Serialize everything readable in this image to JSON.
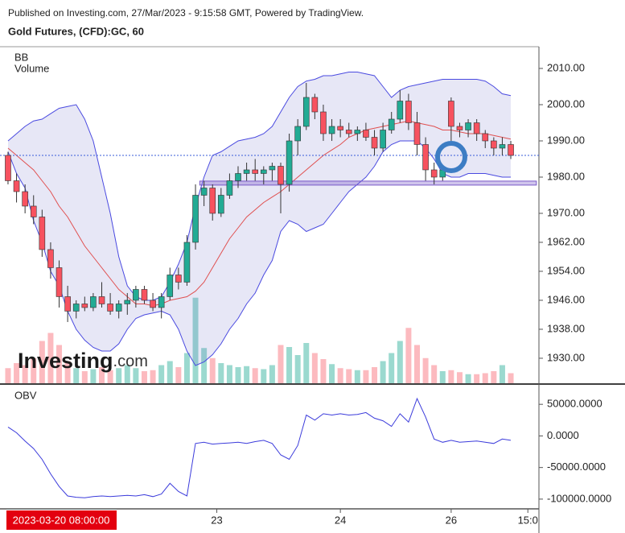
{
  "header": {
    "published": "Published on Investing.com, 27/Mar/2023 - 9:15:58 GMT, Powered by TradingView.",
    "symbol": "Gold Futures, (CFD):GC, 60"
  },
  "crosshair_label": "2023-03-20 08:00:00",
  "chart_data": [
    {
      "type": "candlestick",
      "indicators": [
        "BB",
        "Volume"
      ],
      "watermark": {
        "brand": "Investing",
        "suffix": ".com"
      },
      "x": [
        0,
        1,
        2,
        3,
        4,
        5,
        6,
        7,
        8,
        9,
        10,
        11,
        12,
        13,
        14,
        15,
        16,
        17,
        18,
        19,
        20,
        21,
        22,
        23,
        24,
        25,
        26,
        27,
        28,
        29,
        30,
        31,
        32,
        33,
        34,
        35,
        36,
        37,
        38,
        39,
        40,
        41,
        42,
        43,
        44,
        45,
        46,
        47,
        48,
        49,
        50,
        51,
        52,
        53,
        54,
        55,
        56,
        57,
        58,
        59
      ],
      "candles": [
        [
          1986,
          1987,
          1978,
          1979
        ],
        [
          1979,
          1981,
          1973,
          1976
        ],
        [
          1976,
          1978,
          1970,
          1972
        ],
        [
          1972,
          1975,
          1967,
          1969
        ],
        [
          1969,
          1971,
          1958,
          1960
        ],
        [
          1960,
          1962,
          1952,
          1955
        ],
        [
          1955,
          1957,
          1944,
          1947
        ],
        [
          1947,
          1950,
          1940,
          1943
        ],
        [
          1943,
          1946,
          1941,
          1945
        ],
        [
          1945,
          1947,
          1943,
          1944
        ],
        [
          1944,
          1948,
          1943,
          1947
        ],
        [
          1947,
          1951,
          1944,
          1945
        ],
        [
          1945,
          1948,
          1942,
          1943
        ],
        [
          1943,
          1946,
          1941,
          1945
        ],
        [
          1945,
          1948,
          1942,
          1946
        ],
        [
          1946,
          1950,
          1944,
          1949
        ],
        [
          1949,
          1950,
          1945,
          1946
        ],
        [
          1946,
          1948,
          1943,
          1944
        ],
        [
          1944,
          1948,
          1941,
          1947
        ],
        [
          1947,
          1955,
          1946,
          1953
        ],
        [
          1953,
          1955,
          1949,
          1951
        ],
        [
          1951,
          1964,
          1950,
          1962
        ],
        [
          1962,
          1978,
          1960,
          1975
        ],
        [
          1975,
          1979,
          1972,
          1977
        ],
        [
          1977,
          1978,
          1968,
          1970
        ],
        [
          1970,
          1977,
          1969,
          1975
        ],
        [
          1975,
          1981,
          1974,
          1979
        ],
        [
          1979,
          1983,
          1977,
          1981
        ],
        [
          1981,
          1984,
          1979,
          1982
        ],
        [
          1982,
          1985,
          1979,
          1981
        ],
        [
          1981,
          1983,
          1978,
          1982
        ],
        [
          1982,
          1984,
          1979,
          1983
        ],
        [
          1983,
          1984,
          1970,
          1978
        ],
        [
          1978,
          1992,
          1976,
          1990
        ],
        [
          1990,
          1996,
          1986,
          1994
        ],
        [
          1994,
          2006,
          1993,
          2002
        ],
        [
          2002,
          2003,
          1996,
          1998
        ],
        [
          1998,
          2000,
          1990,
          1992
        ],
        [
          1992,
          1996,
          1990,
          1994
        ],
        [
          1994,
          1996,
          1991,
          1993
        ],
        [
          1993,
          1995,
          1991,
          1992
        ],
        [
          1992,
          1994,
          1990,
          1993
        ],
        [
          1993,
          1995,
          1990,
          1991
        ],
        [
          1991,
          1993,
          1986,
          1988
        ],
        [
          1988,
          1995,
          1987,
          1993
        ],
        [
          1993,
          1998,
          1992,
          1996
        ],
        [
          1996,
          2004,
          1995,
          2001
        ],
        [
          2001,
          2003,
          1993,
          1995
        ],
        [
          1995,
          1998,
          1986,
          1989
        ],
        [
          1989,
          1991,
          1979,
          1982
        ],
        [
          1982,
          1984,
          1978,
          1980
        ],
        [
          1980,
          1983,
          1979,
          1982
        ],
        [
          2001,
          2002,
          1990,
          1994
        ],
        [
          1994,
          1995,
          1991,
          1993
        ],
        [
          1993,
          1996,
          1991,
          1995
        ],
        [
          1995,
          1996,
          1990,
          1992
        ],
        [
          1992,
          1993,
          1988,
          1990
        ],
        [
          1990,
          1991,
          1986,
          1988
        ],
        [
          1988,
          1991,
          1986,
          1989
        ],
        [
          1989,
          1990,
          1985,
          1986
        ]
      ],
      "up_color": "#22ab94",
      "down_color": "#f7525f",
      "bb": {
        "color": "#4a4ae0",
        "mid_color": "#e05050",
        "fill": "rgba(110,110,200,0.17)",
        "upper": [
          1990,
          1992,
          1994,
          1995.5,
          1996,
          1997.5,
          1999,
          1999.5,
          2000,
          1996,
          1990,
          1980,
          1970,
          1958,
          1950,
          1947,
          1946,
          1946,
          1947,
          1951,
          1956,
          1962,
          1972,
          1980,
          1986,
          1987,
          1988.5,
          1990,
          1990.5,
          1991,
          1992,
          1994,
          1998,
          2002,
          2005,
          2006.5,
          2007,
          2008,
          2008,
          2008.5,
          2009,
          2009,
          2008.5,
          2008,
          2005,
          2002,
          2004,
          2005,
          2005.5,
          2006,
          2006.5,
          2007,
          2007,
          2007,
          2007,
          2007,
          2006.5,
          2005,
          2003,
          2002.5
        ],
        "middle": [
          1988,
          1986,
          1984,
          1982,
          1979,
          1976,
          1972,
          1969,
          1965,
          1961,
          1958,
          1955,
          1952,
          1949,
          1947,
          1945,
          1945,
          1944.5,
          1945,
          1946,
          1946.5,
          1947,
          1948.5,
          1951,
          1955,
          1959,
          1963,
          1966,
          1969,
          1971,
          1973,
          1974.5,
          1976,
          1978,
          1980,
          1982,
          1984,
          1986,
          1987.5,
          1989,
          1991,
          1992,
          1993,
          1993.5,
          1994,
          1994.5,
          1995,
          1995.5,
          1995,
          1994.5,
          1994,
          1993,
          1993,
          1992.5,
          1992,
          1992,
          1992,
          1991.5,
          1991,
          1990.5
        ],
        "lower": [
          1987,
          1981,
          1977,
          1968,
          1962,
          1954,
          1950,
          1943,
          1938,
          1935,
          1933,
          1932,
          1932,
          1934,
          1938,
          1941,
          1942,
          1942.5,
          1943,
          1942,
          1938,
          1932,
          1928,
          1929,
          1931,
          1934,
          1938,
          1941,
          1945,
          1948,
          1953,
          1957,
          1965,
          1968,
          1967,
          1965,
          1966,
          1967,
          1970,
          1973,
          1976,
          1978,
          1980,
          1983,
          1987,
          1989,
          1990,
          1990,
          1990,
          1988,
          1985,
          1981,
          1980,
          1980,
          1981,
          1981,
          1981,
          1980.5,
          1980,
          1980
        ]
      },
      "volume": {
        "ylim": [
          0,
          10000
        ],
        "up_color": "rgba(34,171,148,0.45)",
        "down_color": "rgba(247,82,95,0.4)",
        "values": [
          1500,
          2000,
          1800,
          2500,
          4200,
          5000,
          3800,
          2200,
          1500,
          1200,
          1400,
          1600,
          1300,
          1500,
          1800,
          1500,
          1200,
          1300,
          1800,
          2200,
          1600,
          3000,
          8500,
          3500,
          2500,
          2000,
          1800,
          1600,
          1700,
          1500,
          1400,
          1800,
          3800,
          3600,
          2800,
          4000,
          3000,
          2400,
          1900,
          1500,
          1400,
          1300,
          1300,
          1600,
          2200,
          3000,
          4200,
          5500,
          3800,
          2500,
          1800,
          1200,
          1300,
          1100,
          900,
          900,
          1000,
          1200,
          1800,
          1000
        ]
      },
      "hline": {
        "value": 1986,
        "color": "#3a5dd9"
      },
      "zone": {
        "x": [
          22.5,
          62
        ],
        "y": [
          1977.8,
          1978.9
        ],
        "color": "rgba(120,90,200,0.35)"
      },
      "ylim": [
        1923.1,
        2016
      ],
      "yticks": [
        {
          "value": 2010,
          "label": "2010.00"
        },
        {
          "value": 2000,
          "label": "2000.00"
        },
        {
          "value": 1990,
          "label": "1990.00"
        },
        {
          "value": 1980,
          "label": "1980.00"
        },
        {
          "value": 1970,
          "label": "1970.00"
        },
        {
          "value": 1962,
          "label": "1962.00"
        },
        {
          "value": 1954,
          "label": "1954.00"
        },
        {
          "value": 1946,
          "label": "1946.00"
        },
        {
          "value": 1938,
          "label": "1938.00"
        },
        {
          "value": 1930,
          "label": "1930.00"
        }
      ]
    },
    {
      "type": "line",
      "title": "OBV",
      "x": [
        0,
        1,
        2,
        3,
        4,
        5,
        6,
        7,
        8,
        9,
        10,
        11,
        12,
        13,
        14,
        15,
        16,
        17,
        18,
        19,
        20,
        21,
        22,
        23,
        24,
        25,
        26,
        27,
        28,
        29,
        30,
        31,
        32,
        33,
        34,
        35,
        36,
        37,
        38,
        39,
        40,
        41,
        42,
        43,
        44,
        45,
        46,
        47,
        48,
        49,
        50,
        51,
        52,
        53,
        54,
        55,
        56,
        57,
        58,
        59
      ],
      "series": [
        {
          "name": "OBV",
          "color": "#3b3bdb",
          "values": [
            14000,
            5000,
            -8000,
            -20000,
            -37000,
            -60000,
            -80000,
            -95000,
            -97000,
            -98000,
            -96000,
            -95000,
            -96000,
            -95000,
            -94000,
            -95000,
            -93000,
            -96000,
            -92000,
            -75000,
            -88000,
            -95000,
            -12000,
            -10000,
            -13000,
            -12000,
            -11000,
            -10000,
            -12000,
            -9000,
            -7000,
            -12000,
            -30000,
            -37000,
            -15000,
            33000,
            25000,
            35000,
            33000,
            35000,
            33000,
            34000,
            37000,
            28000,
            24000,
            15000,
            35000,
            22000,
            59000,
            30000,
            -5000,
            -10000,
            -7000,
            -10000,
            -9000,
            -8000,
            -10000,
            -12000,
            -5000,
            -7000
          ]
        }
      ],
      "xlim": [
        -0.94,
        62.3
      ],
      "xticks": [
        {
          "value": 24.5,
          "label": "23"
        },
        {
          "value": 39,
          "label": "24"
        },
        {
          "value": 52,
          "label": "26"
        },
        {
          "value": 61,
          "label": "15:0"
        }
      ],
      "ylim": [
        -115400,
        80800
      ],
      "yticks": [
        {
          "value": 50000,
          "label": "50000.0000"
        },
        {
          "value": 0,
          "label": "0.0000"
        },
        {
          "value": -50000,
          "label": "-50000.0000"
        },
        {
          "value": -100000,
          "label": "-100000.0000"
        }
      ]
    }
  ]
}
